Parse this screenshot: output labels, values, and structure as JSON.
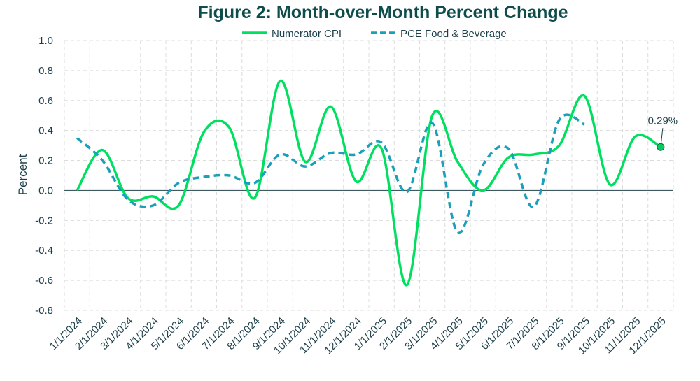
{
  "chart_data": {
    "type": "line",
    "title": "Figure 2: Month-over-Month Percent Change",
    "xlabel": "",
    "ylabel": "Percent",
    "ylim": [
      -0.8,
      1.0
    ],
    "yticks": [
      "1.0",
      "0.8",
      "0.6",
      "0.4",
      "0.2",
      "0.0",
      "-0.2",
      "-0.4",
      "-0.6",
      "-0.8"
    ],
    "grid": true,
    "legend_position": "top",
    "categories": [
      "1/1/2024",
      "2/1/2024",
      "3/1/2024",
      "4/1/2024",
      "5/1/2024",
      "6/1/2024",
      "7/1/2024",
      "8/1/2024",
      "9/1/2024",
      "10/1/2024",
      "11/1/2024",
      "12/1/2024",
      "1/1/2025",
      "2/1/2025",
      "3/1/2025",
      "4/1/2025",
      "5/1/2025",
      "6/1/2025",
      "7/1/2025",
      "8/1/2025",
      "9/1/2025",
      "10/1/2025",
      "11/1/2025",
      "12/1/2025"
    ],
    "series": [
      {
        "name": "Numerator CPI",
        "color": "#00e060",
        "style": "solid",
        "values": [
          0.0,
          0.27,
          -0.05,
          -0.04,
          -0.1,
          0.39,
          0.42,
          -0.05,
          0.73,
          0.19,
          0.56,
          0.06,
          0.28,
          -0.63,
          0.5,
          0.19,
          0.0,
          0.22,
          0.24,
          0.3,
          0.63,
          0.04,
          0.36,
          0.29
        ]
      },
      {
        "name": "PCE Food & Beverage",
        "color": "#1aa0ba",
        "style": "dashed",
        "values": [
          0.35,
          0.2,
          -0.06,
          -0.1,
          0.05,
          0.09,
          0.1,
          0.05,
          0.24,
          0.16,
          0.25,
          0.24,
          0.32,
          -0.01,
          0.45,
          -0.28,
          0.17,
          0.28,
          -0.11,
          0.47,
          0.44,
          null,
          null,
          null
        ]
      }
    ],
    "annotation": {
      "text": "0.29%",
      "series": "Numerator CPI",
      "category": "12/1/2025"
    }
  }
}
